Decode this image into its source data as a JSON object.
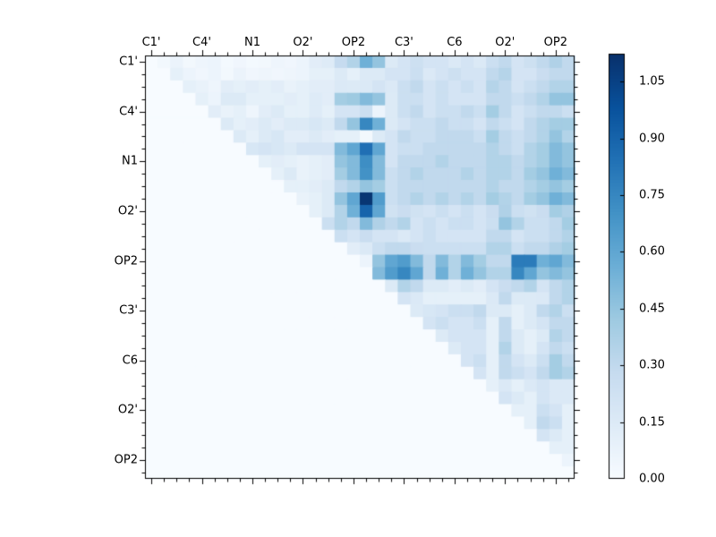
{
  "figure": {
    "background": "#ffffff",
    "frame_color": "#000000",
    "text_color": "#000000"
  },
  "chart_data": {
    "type": "heatmap",
    "title": "",
    "xlabel": "",
    "ylabel": "",
    "grid_size": 34,
    "major_tick_every": 4,
    "x_tick_labels": [
      "C1'",
      "C4'",
      "N1",
      "O2'",
      "OP2",
      "C3'",
      "C6",
      "O2'",
      "OP2"
    ],
    "y_tick_labels": [
      "C1'",
      "C4'",
      "N1",
      "O2'",
      "OP2",
      "C3'",
      "C6",
      "O2'",
      "OP2"
    ],
    "colormap": "Blues",
    "colormap_stops": [
      [
        0.0,
        "#f7fbff"
      ],
      [
        0.125,
        "#deebf7"
      ],
      [
        0.25,
        "#c6dbef"
      ],
      [
        0.375,
        "#9ecae1"
      ],
      [
        0.5,
        "#6baed6"
      ],
      [
        0.625,
        "#4292c6"
      ],
      [
        0.75,
        "#2171b5"
      ],
      [
        0.875,
        "#08519c"
      ],
      [
        1.0,
        "#08306b"
      ]
    ],
    "vmin": 0.0,
    "vmax": 1.124,
    "colorbar": {
      "tick_labels": [
        "0.00",
        "0.15",
        "0.30",
        "0.45",
        "0.60",
        "0.75",
        "0.90",
        "1.05"
      ],
      "tick_values": [
        0.0,
        0.15,
        0.3,
        0.45,
        0.6,
        0.75,
        0.9,
        1.05
      ]
    },
    "values": [
      [
        0,
        0.03,
        0.07,
        0.03,
        0.05,
        0.06,
        0.02,
        0.04,
        0.02,
        0.03,
        0.05,
        0.04,
        0.06,
        0.12,
        0.14,
        0.28,
        0.35,
        0.55,
        0.45,
        0.15,
        0.2,
        0.24,
        0.2,
        0.2,
        0.16,
        0.2,
        0.16,
        0.25,
        0.3,
        0.2,
        0.24,
        0.3,
        0.36,
        0.3
      ],
      [
        0,
        0,
        0.1,
        0.06,
        0.04,
        0.06,
        0.03,
        0.07,
        0.04,
        0.05,
        0.04,
        0.05,
        0.06,
        0.1,
        0.1,
        0.15,
        0.1,
        0.15,
        0.15,
        0.2,
        0.2,
        0.25,
        0.16,
        0.2,
        0.24,
        0.2,
        0.2,
        0.3,
        0.34,
        0.2,
        0.2,
        0.26,
        0.3,
        0.3
      ],
      [
        0,
        0,
        0,
        0.1,
        0.08,
        0.05,
        0.12,
        0.1,
        0.12,
        0.1,
        0.12,
        0.08,
        0.1,
        0.12,
        0.12,
        0.16,
        0.15,
        0.16,
        0.2,
        0.16,
        0.25,
        0.3,
        0.2,
        0.25,
        0.2,
        0.25,
        0.2,
        0.34,
        0.3,
        0.2,
        0.25,
        0.3,
        0.35,
        0.35
      ],
      [
        0,
        0,
        0,
        0,
        0.1,
        0.06,
        0.15,
        0.15,
        0.1,
        0.1,
        0.1,
        0.12,
        0.1,
        0.14,
        0.12,
        0.4,
        0.42,
        0.5,
        0.45,
        0.15,
        0.25,
        0.25,
        0.2,
        0.25,
        0.2,
        0.2,
        0.2,
        0.3,
        0.3,
        0.25,
        0.3,
        0.35,
        0.45,
        0.45
      ],
      [
        0,
        0,
        0,
        0,
        0,
        0.12,
        0.08,
        0.1,
        0.05,
        0.12,
        0.15,
        0.1,
        0.1,
        0.14,
        0.1,
        0.2,
        0.2,
        0.25,
        0.06,
        0.15,
        0.25,
        0.3,
        0.2,
        0.25,
        0.25,
        0.3,
        0.25,
        0.4,
        0.3,
        0.2,
        0.25,
        0.3,
        0.3,
        0.25
      ],
      [
        0,
        0,
        0,
        0,
        0,
        0,
        0.15,
        0.1,
        0.12,
        0.15,
        0.12,
        0.15,
        0.15,
        0.18,
        0.15,
        0.3,
        0.45,
        0.75,
        0.55,
        0.15,
        0.2,
        0.25,
        0.25,
        0.3,
        0.25,
        0.25,
        0.2,
        0.3,
        0.25,
        0.2,
        0.3,
        0.35,
        0.4,
        0.4
      ],
      [
        0,
        0,
        0,
        0,
        0,
        0,
        0,
        0.15,
        0.1,
        0.15,
        0.18,
        0.12,
        0.12,
        0.15,
        0.12,
        0.1,
        0.1,
        0.03,
        0.15,
        0.2,
        0.3,
        0.25,
        0.25,
        0.3,
        0.3,
        0.3,
        0.25,
        0.4,
        0.3,
        0.25,
        0.3,
        0.35,
        0.45,
        0.35
      ],
      [
        0,
        0,
        0,
        0,
        0,
        0,
        0,
        0,
        0.18,
        0.2,
        0.18,
        0.15,
        0.2,
        0.2,
        0.2,
        0.5,
        0.6,
        0.85,
        0.6,
        0.2,
        0.25,
        0.25,
        0.3,
        0.3,
        0.3,
        0.3,
        0.3,
        0.35,
        0.3,
        0.25,
        0.35,
        0.4,
        0.5,
        0.45
      ],
      [
        0,
        0,
        0,
        0,
        0,
        0,
        0,
        0,
        0,
        0.1,
        0.12,
        0.1,
        0.08,
        0.1,
        0.12,
        0.45,
        0.5,
        0.72,
        0.5,
        0.2,
        0.3,
        0.3,
        0.3,
        0.35,
        0.3,
        0.3,
        0.3,
        0.35,
        0.35,
        0.3,
        0.35,
        0.4,
        0.5,
        0.45
      ],
      [
        0,
        0,
        0,
        0,
        0,
        0,
        0,
        0,
        0,
        0,
        0.1,
        0.15,
        0.08,
        0.1,
        0.12,
        0.4,
        0.5,
        0.7,
        0.5,
        0.25,
        0.3,
        0.35,
        0.3,
        0.3,
        0.3,
        0.35,
        0.3,
        0.35,
        0.35,
        0.3,
        0.4,
        0.45,
        0.55,
        0.5
      ],
      [
        0,
        0,
        0,
        0,
        0,
        0,
        0,
        0,
        0,
        0,
        0,
        0.1,
        0.1,
        0.12,
        0.15,
        0.3,
        0.35,
        0.45,
        0.4,
        0.25,
        0.3,
        0.3,
        0.3,
        0.3,
        0.3,
        0.3,
        0.3,
        0.35,
        0.3,
        0.3,
        0.35,
        0.4,
        0.45,
        0.4
      ],
      [
        0,
        0,
        0,
        0,
        0,
        0,
        0,
        0,
        0,
        0,
        0,
        0,
        0.08,
        0.1,
        0.15,
        0.45,
        0.6,
        1.1,
        0.65,
        0.25,
        0.3,
        0.35,
        0.3,
        0.35,
        0.3,
        0.35,
        0.3,
        0.4,
        0.35,
        0.3,
        0.4,
        0.45,
        0.55,
        0.5
      ],
      [
        0,
        0,
        0,
        0,
        0,
        0,
        0,
        0,
        0,
        0,
        0,
        0,
        0,
        0.1,
        0.15,
        0.35,
        0.55,
        0.9,
        0.6,
        0.22,
        0.26,
        0.22,
        0.2,
        0.25,
        0.2,
        0.25,
        0.2,
        0.26,
        0.36,
        0.25,
        0.22,
        0.26,
        0.4,
        0.36
      ],
      [
        0,
        0,
        0,
        0,
        0,
        0,
        0,
        0,
        0,
        0,
        0,
        0,
        0,
        0,
        0.25,
        0.35,
        0.3,
        0.5,
        0.36,
        0.3,
        0.35,
        0.2,
        0.25,
        0.2,
        0.25,
        0.25,
        0.2,
        0.25,
        0.45,
        0.35,
        0.25,
        0.25,
        0.3,
        0.4
      ],
      [
        0,
        0,
        0,
        0,
        0,
        0,
        0,
        0,
        0,
        0,
        0,
        0,
        0,
        0,
        0,
        0.25,
        0.2,
        0.26,
        0.2,
        0.2,
        0.16,
        0.2,
        0.25,
        0.2,
        0.2,
        0.2,
        0.2,
        0.3,
        0.3,
        0.2,
        0.25,
        0.25,
        0.3,
        0.35
      ],
      [
        0,
        0,
        0,
        0,
        0,
        0,
        0,
        0,
        0,
        0,
        0,
        0,
        0,
        0,
        0,
        0,
        0.12,
        0.16,
        0.25,
        0.3,
        0.3,
        0.26,
        0.25,
        0.25,
        0.25,
        0.25,
        0.25,
        0.35,
        0.35,
        0.25,
        0.3,
        0.3,
        0.36,
        0.4
      ],
      [
        0,
        0,
        0,
        0,
        0,
        0,
        0,
        0,
        0,
        0,
        0,
        0,
        0,
        0,
        0,
        0,
        0,
        0.06,
        0.45,
        0.6,
        0.65,
        0.5,
        0.3,
        0.5,
        0.35,
        0.5,
        0.4,
        0.3,
        0.3,
        0.8,
        0.8,
        0.55,
        0.6,
        0.5
      ],
      [
        0,
        0,
        0,
        0,
        0,
        0,
        0,
        0,
        0,
        0,
        0,
        0,
        0,
        0,
        0,
        0,
        0,
        0,
        0.5,
        0.65,
        0.75,
        0.6,
        0.3,
        0.55,
        0.35,
        0.55,
        0.45,
        0.35,
        0.35,
        0.75,
        0.6,
        0.45,
        0.5,
        0.45
      ],
      [
        0,
        0,
        0,
        0,
        0,
        0,
        0,
        0,
        0,
        0,
        0,
        0,
        0,
        0,
        0,
        0,
        0,
        0,
        0,
        0.15,
        0.35,
        0.3,
        0.15,
        0.15,
        0.12,
        0.15,
        0.12,
        0.2,
        0.26,
        0.3,
        0.35,
        0.2,
        0.3,
        0.35
      ],
      [
        0,
        0,
        0,
        0,
        0,
        0,
        0,
        0,
        0,
        0,
        0,
        0,
        0,
        0,
        0,
        0,
        0,
        0,
        0,
        0,
        0.2,
        0.16,
        0.1,
        0.1,
        0.1,
        0.1,
        0.1,
        0.16,
        0.3,
        0.15,
        0.15,
        0.16,
        0.3,
        0.35
      ],
      [
        0,
        0,
        0,
        0,
        0,
        0,
        0,
        0,
        0,
        0,
        0,
        0,
        0,
        0,
        0,
        0,
        0,
        0,
        0,
        0,
        0,
        0.15,
        0.18,
        0.2,
        0.25,
        0.25,
        0.3,
        0.15,
        0.15,
        0.1,
        0.15,
        0.3,
        0.35,
        0.25
      ],
      [
        0,
        0,
        0,
        0,
        0,
        0,
        0,
        0,
        0,
        0,
        0,
        0,
        0,
        0,
        0,
        0,
        0,
        0,
        0,
        0,
        0,
        0,
        0.2,
        0.25,
        0.2,
        0.2,
        0.25,
        0.1,
        0.3,
        0.1,
        0.15,
        0.2,
        0.3,
        0.3
      ],
      [
        0,
        0,
        0,
        0,
        0,
        0,
        0,
        0,
        0,
        0,
        0,
        0,
        0,
        0,
        0,
        0,
        0,
        0,
        0,
        0,
        0,
        0,
        0,
        0.15,
        0.2,
        0.2,
        0.2,
        0.1,
        0.3,
        0.15,
        0.1,
        0.15,
        0.35,
        0.3
      ],
      [
        0,
        0,
        0,
        0,
        0,
        0,
        0,
        0,
        0,
        0,
        0,
        0,
        0,
        0,
        0,
        0,
        0,
        0,
        0,
        0,
        0,
        0,
        0,
        0,
        0.15,
        0.2,
        0.2,
        0.1,
        0.35,
        0.15,
        0.1,
        0.2,
        0.3,
        0.25
      ],
      [
        0,
        0,
        0,
        0,
        0,
        0,
        0,
        0,
        0,
        0,
        0,
        0,
        0,
        0,
        0,
        0,
        0,
        0,
        0,
        0,
        0,
        0,
        0,
        0,
        0,
        0.2,
        0.25,
        0.1,
        0.3,
        0.2,
        0.15,
        0.25,
        0.4,
        0.3
      ],
      [
        0,
        0,
        0,
        0,
        0,
        0,
        0,
        0,
        0,
        0,
        0,
        0,
        0,
        0,
        0,
        0,
        0,
        0,
        0,
        0,
        0,
        0,
        0,
        0,
        0,
        0,
        0.2,
        0.1,
        0.3,
        0.25,
        0.2,
        0.3,
        0.4,
        0.35
      ],
      [
        0,
        0,
        0,
        0,
        0,
        0,
        0,
        0,
        0,
        0,
        0,
        0,
        0,
        0,
        0,
        0,
        0,
        0,
        0,
        0,
        0,
        0,
        0,
        0,
        0,
        0,
        0,
        0.1,
        0.16,
        0.1,
        0.16,
        0.2,
        0.16,
        0.16
      ],
      [
        0,
        0,
        0,
        0,
        0,
        0,
        0,
        0,
        0,
        0,
        0,
        0,
        0,
        0,
        0,
        0,
        0,
        0,
        0,
        0,
        0,
        0,
        0,
        0,
        0,
        0,
        0,
        0,
        0.2,
        0.15,
        0.1,
        0.2,
        0.16,
        0.16
      ],
      [
        0,
        0,
        0,
        0,
        0,
        0,
        0,
        0,
        0,
        0,
        0,
        0,
        0,
        0,
        0,
        0,
        0,
        0,
        0,
        0,
        0,
        0,
        0,
        0,
        0,
        0,
        0,
        0,
        0,
        0.1,
        0.1,
        0.25,
        0.2,
        0.1
      ],
      [
        0,
        0,
        0,
        0,
        0,
        0,
        0,
        0,
        0,
        0,
        0,
        0,
        0,
        0,
        0,
        0,
        0,
        0,
        0,
        0,
        0,
        0,
        0,
        0,
        0,
        0,
        0,
        0,
        0,
        0,
        0.1,
        0.3,
        0.25,
        0.1
      ],
      [
        0,
        0,
        0,
        0,
        0,
        0,
        0,
        0,
        0,
        0,
        0,
        0,
        0,
        0,
        0,
        0,
        0,
        0,
        0,
        0,
        0,
        0,
        0,
        0,
        0,
        0,
        0,
        0,
        0,
        0,
        0,
        0.2,
        0.15,
        0.1
      ],
      [
        0,
        0,
        0,
        0,
        0,
        0,
        0,
        0,
        0,
        0,
        0,
        0,
        0,
        0,
        0,
        0,
        0,
        0,
        0,
        0,
        0,
        0,
        0,
        0,
        0,
        0,
        0,
        0,
        0,
        0,
        0,
        0,
        0.1,
        0.1
      ],
      [
        0,
        0,
        0,
        0,
        0,
        0,
        0,
        0,
        0,
        0,
        0,
        0,
        0,
        0,
        0,
        0,
        0,
        0,
        0,
        0,
        0,
        0,
        0,
        0,
        0,
        0,
        0,
        0,
        0,
        0,
        0,
        0,
        0,
        0.06
      ],
      [
        0,
        0,
        0,
        0,
        0,
        0,
        0,
        0,
        0,
        0,
        0,
        0,
        0,
        0,
        0,
        0,
        0,
        0,
        0,
        0,
        0,
        0,
        0,
        0,
        0,
        0,
        0,
        0,
        0,
        0,
        0,
        0,
        0,
        0
      ]
    ]
  }
}
